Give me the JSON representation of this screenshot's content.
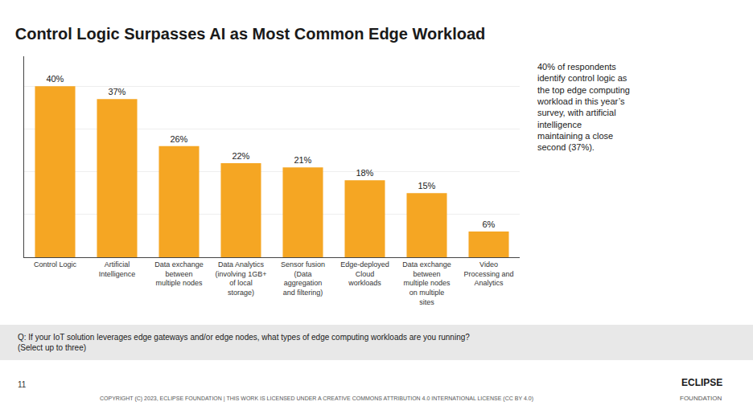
{
  "chart_data": {
    "type": "bar",
    "title": "Control Logic Surpasses AI as Most Common Edge Workload",
    "categories": [
      "Control Logic",
      "Artificial\nIntelligence",
      "Data exchange\nbetween\nmultiple nodes",
      "Data Analytics\n(involving 1GB+\nof local\nstorage)",
      "Sensor fusion\n(Data\naggregation\nand filtering)",
      "Edge-deployed\nCloud\nworkloads",
      "Data exchange\nbetween\nmultiple nodes\non multiple\nsites",
      "Video\nProcessing and\nAnalytics"
    ],
    "values": [
      40,
      37,
      26,
      22,
      21,
      18,
      15,
      6
    ],
    "value_labels": [
      "40%",
      "37%",
      "26%",
      "22%",
      "21%",
      "18%",
      "15%",
      "6%"
    ],
    "data_labels": true,
    "color": "#F5A623",
    "ylim": [
      0,
      47
    ],
    "yticks": [
      0,
      10,
      20,
      30,
      40
    ],
    "grid": true,
    "tick_labels": "x",
    "annotations": [
      "40% of respondents\nidentify control logic as\nthe top edge computing\nworkload in this year’s\nsurvey, with artificial\nintelligence\nmaintaining a close\nsecond (37%).",
      "Q: If your IoT solution leverages edge gateways and/or edge nodes, what types of edge computing workloads are you running?\n(Select up to three)",
      "11",
      "COPYRIGHT (C) 2023, ECLIPSE FOUNDATION | THIS WORK IS LICENSED UNDER A CREATIVE COMMONS ATTRIBUTION 4.0 INTERNATIONAL LICENSE (CC BY 4.0)",
      "ECLIPSE",
      "FOUNDATION"
    ]
  }
}
